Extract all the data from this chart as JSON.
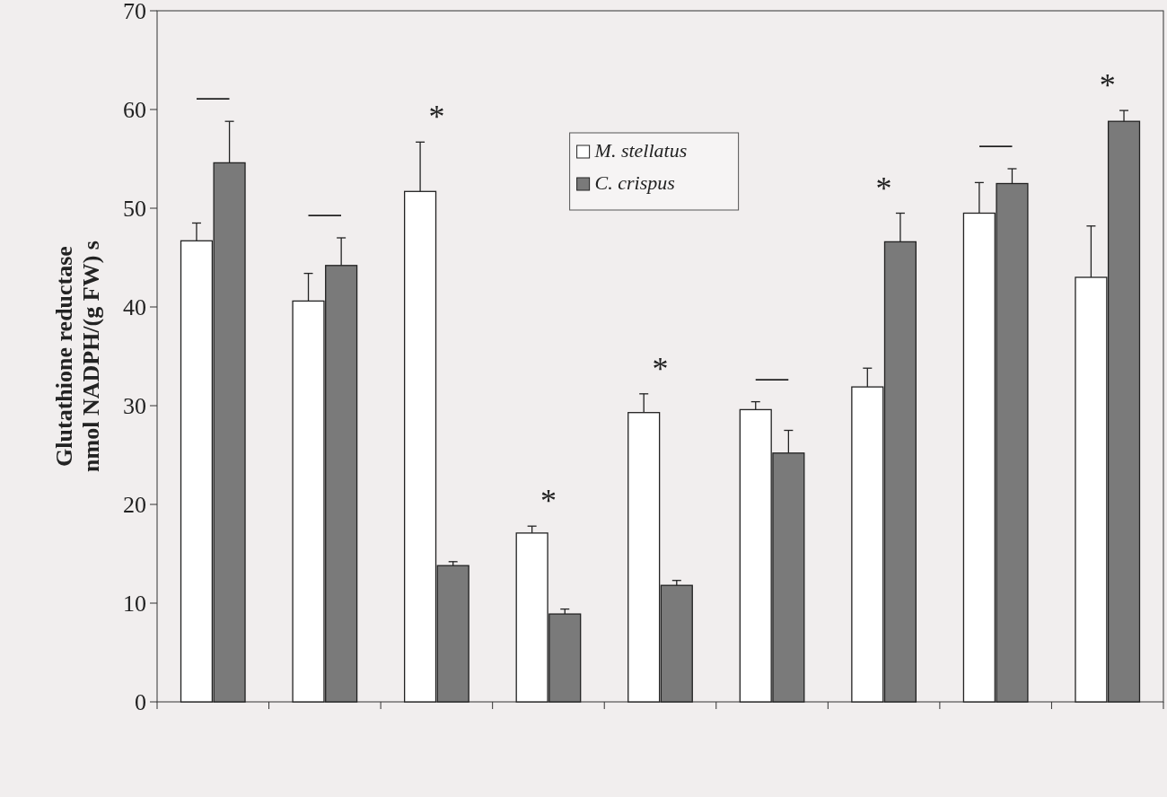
{
  "chart_data": {
    "type": "bar",
    "ylabel": "Glutathione reductase\nnmol NADPH/(g FW) s",
    "categories": [
      null,
      null,
      null,
      null,
      null,
      null,
      null,
      null,
      null
    ],
    "series": [
      {
        "name": "M. stellatus",
        "color": "#ffffff",
        "values": [
          46.7,
          40.6,
          51.7,
          17.1,
          29.3,
          29.6,
          31.9,
          49.5,
          43.0
        ],
        "errors": [
          1.8,
          2.8,
          5.0,
          0.7,
          1.9,
          0.8,
          1.9,
          3.1,
          5.2
        ]
      },
      {
        "name": "C. crispus",
        "color": "#7a7a7a",
        "values": [
          54.6,
          44.2,
          13.8,
          8.9,
          11.8,
          25.2,
          46.6,
          52.5,
          58.8
        ],
        "errors": [
          4.2,
          2.8,
          0.4,
          0.5,
          0.5,
          2.3,
          2.9,
          1.5,
          1.1
        ]
      }
    ],
    "ylim": [
      0,
      70
    ],
    "yticks": [
      0,
      10,
      20,
      30,
      40,
      50,
      60,
      70
    ],
    "legend": "top",
    "annotations": [
      "—",
      "—",
      "*",
      "*",
      "*",
      "—",
      "*",
      "—",
      "*"
    ]
  }
}
